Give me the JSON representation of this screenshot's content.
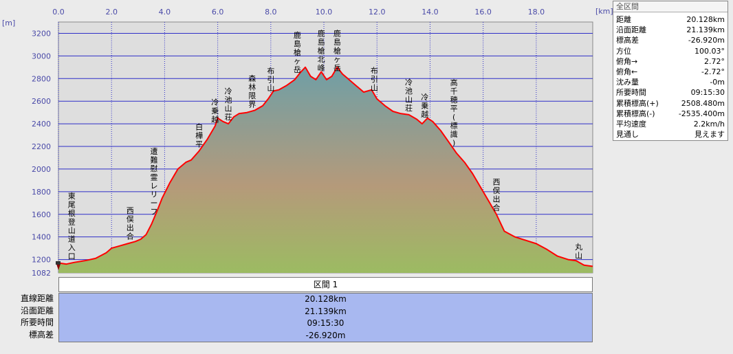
{
  "info_panel": {
    "title": "全区間",
    "rows": [
      {
        "label": "距離",
        "value": "20.128km"
      },
      {
        "label": "沿面距離",
        "value": "21.139km"
      },
      {
        "label": "標高差",
        "value": "-26.920m"
      },
      {
        "label": "方位",
        "value": "100.03°"
      },
      {
        "label": "俯角→",
        "value": "2.72°"
      },
      {
        "label": "俯角←",
        "value": "-2.72°"
      },
      {
        "label": "沈み量",
        "value": "-0m"
      },
      {
        "label": "所要時間",
        "value": "09:15:30"
      },
      {
        "label": "累積標高(+)",
        "value": "2508.480m"
      },
      {
        "label": "累積標高(-)",
        "value": "-2535.400m"
      },
      {
        "label": "平均速度",
        "value": "2.2km/h"
      },
      {
        "label": "見通し",
        "value": "見えます"
      }
    ]
  },
  "section": {
    "header": "区間 1",
    "labels": [
      "直線距離",
      "沿面距離",
      "所要時間",
      "標高差"
    ],
    "values": [
      "20.128km",
      "21.139km",
      "09:15:30",
      "-26.920m"
    ]
  },
  "chart_data": {
    "type": "area",
    "xlabel": "[km]",
    "ylabel": "[m]",
    "xlim": [
      0,
      20.128
    ],
    "ylim": [
      1082,
      3300
    ],
    "x_ticks": [
      "0.0",
      "2.0",
      "4.0",
      "6.0",
      "8.0",
      "10.0",
      "12.0",
      "14.0",
      "16.0",
      "18.0"
    ],
    "y_ticks": [
      "1200",
      "1400",
      "1600",
      "1800",
      "2000",
      "2200",
      "2400",
      "2600",
      "2800",
      "3000",
      "3200"
    ],
    "y_min_label": "1082",
    "grid": true,
    "colors": {
      "line": "#ff0000",
      "grid": "#2d2dc8",
      "plot_bg": "#dedede",
      "fill_top": "#6f9fa6",
      "fill_mid": "#b59a7a",
      "fill_bottom": "#9cbb62"
    },
    "profile": {
      "x": [
        0,
        0.3,
        0.6,
        1.0,
        1.4,
        1.8,
        2.0,
        2.3,
        2.6,
        2.9,
        3.1,
        3.3,
        3.5,
        3.7,
        3.9,
        4.2,
        4.5,
        4.8,
        5.0,
        5.3,
        5.6,
        5.9,
        6.0,
        6.2,
        6.4,
        6.6,
        6.8,
        7.1,
        7.4,
        7.7,
        7.9,
        8.1,
        8.3,
        8.6,
        8.9,
        9.1,
        9.3,
        9.5,
        9.7,
        9.9,
        10.1,
        10.3,
        10.5,
        10.7,
        10.9,
        11.2,
        11.5,
        11.8,
        12.0,
        12.3,
        12.6,
        12.9,
        13.2,
        13.5,
        13.7,
        13.9,
        14.1,
        14.4,
        14.7,
        15.0,
        15.3,
        15.6,
        15.9,
        16.2,
        16.5,
        16.8,
        17.2,
        17.6,
        18.0,
        18.4,
        18.8,
        19.2,
        19.5,
        19.8,
        20.128
      ],
      "y": [
        1170,
        1160,
        1175,
        1190,
        1210,
        1260,
        1300,
        1320,
        1340,
        1360,
        1380,
        1420,
        1510,
        1620,
        1740,
        1880,
        2000,
        2060,
        2080,
        2160,
        2260,
        2380,
        2450,
        2420,
        2400,
        2460,
        2490,
        2500,
        2520,
        2560,
        2620,
        2690,
        2700,
        2740,
        2790,
        2850,
        2900,
        2820,
        2790,
        2860,
        2790,
        2820,
        2900,
        2840,
        2800,
        2740,
        2680,
        2700,
        2620,
        2560,
        2510,
        2490,
        2480,
        2440,
        2400,
        2450,
        2420,
        2340,
        2240,
        2140,
        2060,
        1960,
        1840,
        1720,
        1600,
        1450,
        1400,
        1370,
        1340,
        1290,
        1230,
        1200,
        1190,
        1150,
        1140
      ]
    },
    "annotations": [
      {
        "text": "東尾根登山道入口",
        "x": 0.5
      },
      {
        "text": "西俣出合",
        "x": 2.7
      },
      {
        "text": "遭難慰霊レリーフ",
        "x": 3.6
      },
      {
        "text": "白樺平",
        "x": 5.3
      },
      {
        "text": "冷乗越",
        "x": 5.9
      },
      {
        "text": "冷池山荘",
        "x": 6.4
      },
      {
        "text": "森林限界",
        "x": 7.3
      },
      {
        "text": "布引山",
        "x": 8.0
      },
      {
        "text": "鹿島槍ヶ岳",
        "x": 9.0
      },
      {
        "text": "鹿島槍北峰",
        "x": 9.9
      },
      {
        "text": "鹿島槍ヶ岳",
        "x": 10.5
      },
      {
        "text": "布引山",
        "x": 11.9
      },
      {
        "text": "冷池山荘",
        "x": 13.2
      },
      {
        "text": "冷乗越",
        "x": 13.8
      },
      {
        "text": "高千穂平(標識)",
        "x": 14.9
      },
      {
        "text": "西俣出合",
        "x": 16.5
      },
      {
        "text": "丸山",
        "x": 19.6
      }
    ]
  }
}
